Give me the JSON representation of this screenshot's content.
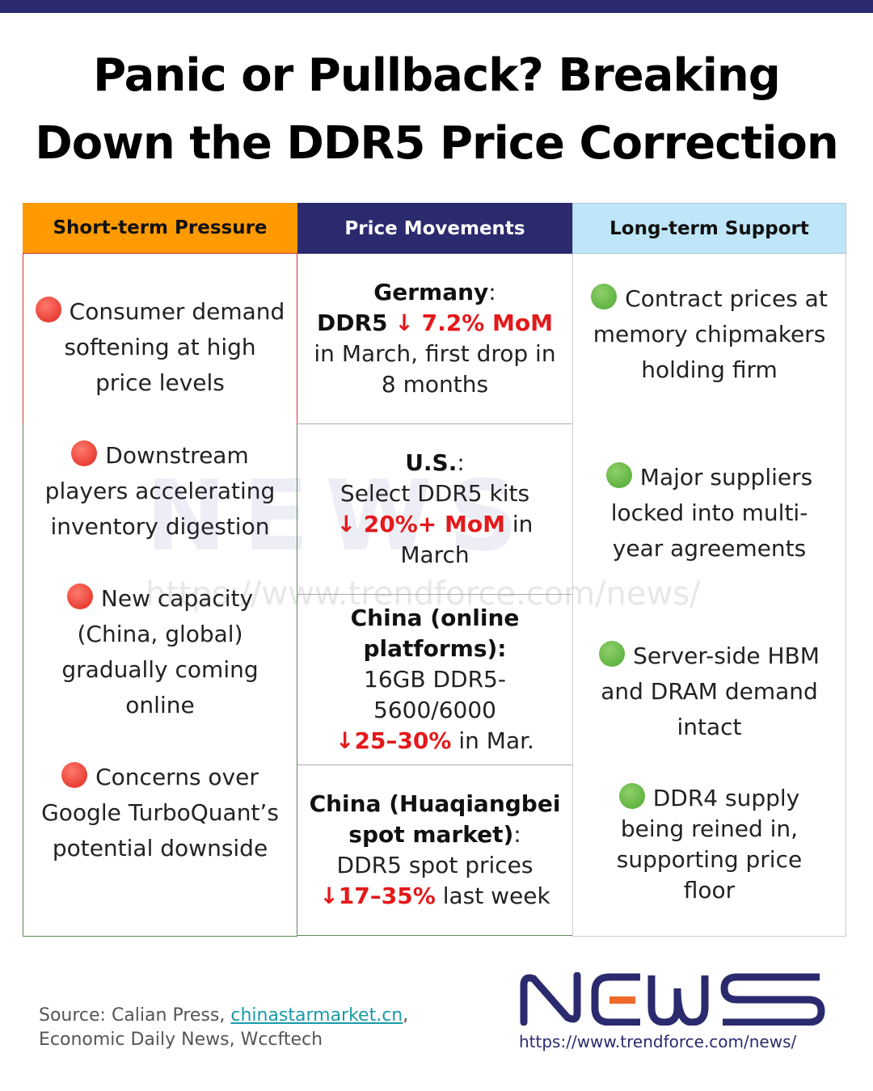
{
  "title": {
    "line1": "Panic or Pullback? Breaking",
    "line2": "Down the DDR5 Price Correction"
  },
  "colors": {
    "top_bar": "#2b2a6e",
    "short_term_header": "#ff9a00",
    "price_header": "#2b2a6e",
    "long_term_header": "#bfe6f8",
    "decline_red": "#e3191b"
  },
  "headers": [
    "Short-term Pressure",
    "Price Movements",
    "Long-term Support"
  ],
  "short_term": [
    "Consumer demand softening at high price levels",
    "Downstream players accelerating inventory digestion",
    "New capacity (China, global) gradually coming online",
    "Concerns over Google TurboQuant’s potential downside"
  ],
  "price_movements": [
    {
      "region": "Germany",
      "colon": ":",
      "a": "DDR5",
      "change": "↓ 7.2% MoM",
      "b": "in March, first drop in 8 months"
    },
    {
      "region": "U.S.",
      "colon": ":",
      "a": "Select DDR5 kits",
      "change": "↓ 20%+ MoM",
      "b": "in March"
    },
    {
      "region": "China (online platforms):",
      "a": "16GB DDR5-5600/6000",
      "change": "↓25–30%",
      "b": "in Mar."
    },
    {
      "region": "China (Huaqiangbei spot market)",
      "colon": ":",
      "a": "DDR5 spot prices",
      "change": "↓17–35%",
      "b": "last week"
    }
  ],
  "long_term": [
    "Contract prices at memory chipmakers holding firm",
    "Major suppliers locked into multi-year agreements",
    "Server-side HBM and DRAM demand intact",
    "DDR4 supply being reined in, supporting price floor"
  ],
  "icons": {
    "short_term": "red-circle-icon",
    "long_term": "green-circle-icon"
  },
  "watermark": {
    "logo": "NEWS",
    "url": "https://www.trendforce.com/news/"
  },
  "footer": {
    "source_prefix": "Source: Calian Press, ",
    "source_link": "chinastarmarket.cn",
    "source_suffix": ",",
    "source_line2": "Economic Daily News, Wccftech",
    "logo_text": "NEWS",
    "url": "https://www.trendforce.com/news/"
  }
}
